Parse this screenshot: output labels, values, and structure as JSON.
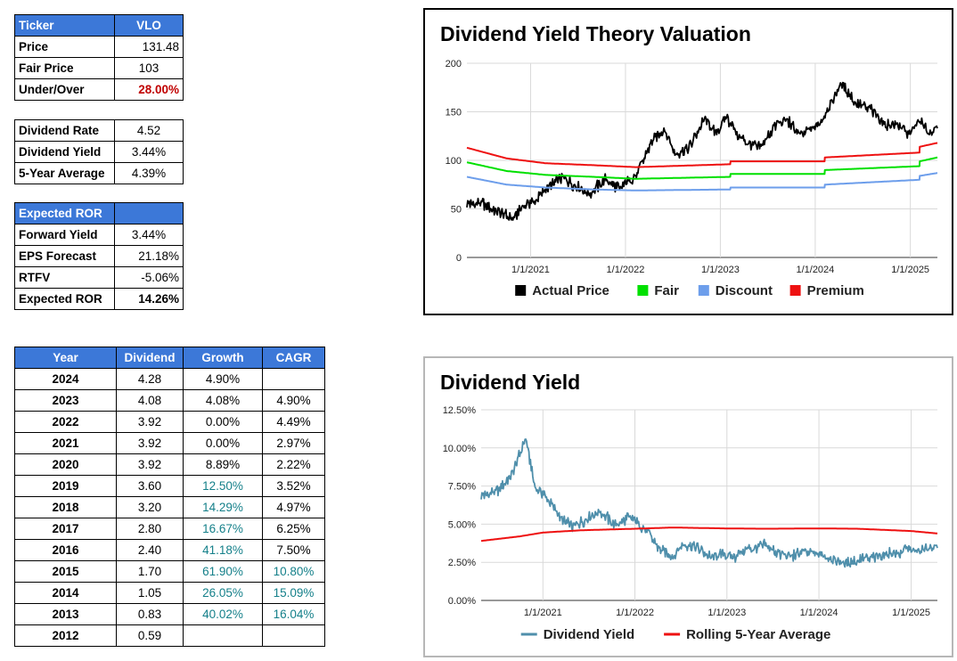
{
  "summary": {
    "ticker_label": "Ticker",
    "ticker": "VLO",
    "price_label": "Price",
    "price": "131.48",
    "fair_label": "Fair Price",
    "fair": "103",
    "uo_label": "Under/Over",
    "uo": "28.00%"
  },
  "dividend": {
    "rate_label": "Dividend Rate",
    "rate": "4.52",
    "yield_label": "Dividend Yield",
    "yield": "3.44%",
    "avg_label": "5-Year Average",
    "avg": "4.39%"
  },
  "ror": {
    "header": "Expected ROR",
    "fy_label": "Forward Yield",
    "fy": "3.44%",
    "eps_label": "EPS Forecast",
    "eps": "21.18%",
    "rtfv_label": "RTFV",
    "rtfv": "-5.06%",
    "exp_label": "Expected ROR",
    "exp": "14.26%"
  },
  "history": {
    "headers": [
      "Year",
      "Dividend",
      "Growth",
      "CAGR"
    ],
    "rows": [
      {
        "year": "2024",
        "dividend": "4.28",
        "growth": "4.90%",
        "cagr": "",
        "gtone": "black",
        "ctone": "black"
      },
      {
        "year": "2023",
        "dividend": "4.08",
        "growth": "4.08%",
        "cagr": "4.90%",
        "gtone": "black",
        "ctone": "black"
      },
      {
        "year": "2022",
        "dividend": "3.92",
        "growth": "0.00%",
        "cagr": "4.49%",
        "gtone": "black",
        "ctone": "black"
      },
      {
        "year": "2021",
        "dividend": "3.92",
        "growth": "0.00%",
        "cagr": "2.97%",
        "gtone": "black",
        "ctone": "black"
      },
      {
        "year": "2020",
        "dividend": "3.92",
        "growth": "8.89%",
        "cagr": "2.22%",
        "gtone": "black",
        "ctone": "black"
      },
      {
        "year": "2019",
        "dividend": "3.60",
        "growth": "12.50%",
        "cagr": "3.52%",
        "gtone": "teal",
        "ctone": "black"
      },
      {
        "year": "2018",
        "dividend": "3.20",
        "growth": "14.29%",
        "cagr": "4.97%",
        "gtone": "teal",
        "ctone": "black"
      },
      {
        "year": "2017",
        "dividend": "2.80",
        "growth": "16.67%",
        "cagr": "6.25%",
        "gtone": "teal",
        "ctone": "black"
      },
      {
        "year": "2016",
        "dividend": "2.40",
        "growth": "41.18%",
        "cagr": "7.50%",
        "gtone": "teal",
        "ctone": "black"
      },
      {
        "year": "2015",
        "dividend": "1.70",
        "growth": "61.90%",
        "cagr": "10.80%",
        "gtone": "teal",
        "ctone": "teal"
      },
      {
        "year": "2014",
        "dividend": "1.05",
        "growth": "26.05%",
        "cagr": "15.09%",
        "gtone": "teal",
        "ctone": "teal"
      },
      {
        "year": "2013",
        "dividend": "0.83",
        "growth": "40.02%",
        "cagr": "16.04%",
        "gtone": "teal",
        "ctone": "teal"
      },
      {
        "year": "2012",
        "dividend": "0.59",
        "growth": "",
        "cagr": "",
        "gtone": "black",
        "ctone": "black"
      }
    ]
  },
  "colors": {
    "header_bg": "#3c78d8",
    "alert_red": "#c00000",
    "growth_teal": "#15808a",
    "actual": "#000000",
    "fair": "#00e000",
    "discount": "#6d9eeb",
    "premium": "#ee1111",
    "yield_line": "#4f8fab",
    "rolling_line": "#ee1111"
  },
  "chart_data": [
    {
      "type": "line",
      "title": "Dividend Yield Theory Valuation",
      "x_ticks": [
        "1/1/2021",
        "1/1/2022",
        "1/1/2023",
        "1/1/2024",
        "1/1/2025"
      ],
      "y_ticks": [
        "0",
        "50",
        "100",
        "150",
        "200"
      ],
      "ylim": [
        0,
        200
      ],
      "xlim": [
        "2020-05-01",
        "2025-04-15"
      ],
      "grid": true,
      "legend_position": "bottom",
      "series": [
        {
          "name": "Actual Price",
          "color": "#000000",
          "points": [
            [
              "2020-05-01",
              56
            ],
            [
              "2020-07-01",
              55
            ],
            [
              "2020-09-01",
              47
            ],
            [
              "2020-10-25",
              39
            ],
            [
              "2020-12-01",
              53
            ],
            [
              "2021-01-15",
              58
            ],
            [
              "2021-03-15",
              73
            ],
            [
              "2021-05-01",
              82
            ],
            [
              "2021-06-01",
              77
            ],
            [
              "2021-08-15",
              66
            ],
            [
              "2021-10-15",
              80
            ],
            [
              "2021-12-10",
              71
            ],
            [
              "2022-02-15",
              86
            ],
            [
              "2022-04-10",
              118
            ],
            [
              "2022-06-01",
              133
            ],
            [
              "2022-07-10",
              107
            ],
            [
              "2022-09-01",
              112
            ],
            [
              "2022-11-01",
              143
            ],
            [
              "2022-12-15",
              128
            ],
            [
              "2023-01-25",
              145
            ],
            [
              "2023-03-15",
              123
            ],
            [
              "2023-06-01",
              112
            ],
            [
              "2023-08-01",
              136
            ],
            [
              "2023-09-15",
              142
            ],
            [
              "2023-11-01",
              126
            ],
            [
              "2024-01-15",
              137
            ],
            [
              "2024-03-20",
              167
            ],
            [
              "2024-04-10",
              179
            ],
            [
              "2024-06-10",
              158
            ],
            [
              "2024-08-01",
              153
            ],
            [
              "2024-10-01",
              136
            ],
            [
              "2024-11-15",
              138
            ],
            [
              "2024-12-20",
              126
            ],
            [
              "2025-02-05",
              141
            ],
            [
              "2025-03-15",
              128
            ],
            [
              "2025-04-15",
              133
            ]
          ]
        },
        {
          "name": "Fair",
          "color": "#00e000",
          "points": [
            [
              "2020-05-01",
              98
            ],
            [
              "2020-10-01",
              89
            ],
            [
              "2021-03-01",
              85
            ],
            [
              "2021-09-01",
              83
            ],
            [
              "2022-02-09",
              81
            ],
            [
              "2023-02-08",
              83
            ],
            [
              "2023-02-09",
              86
            ],
            [
              "2024-02-06",
              86
            ],
            [
              "2024-02-07",
              90
            ],
            [
              "2025-02-05",
              94
            ],
            [
              "2025-02-06",
              99
            ],
            [
              "2025-04-15",
              103
            ]
          ]
        },
        {
          "name": "Discount",
          "color": "#6d9eeb",
          "points": [
            [
              "2020-05-01",
              83
            ],
            [
              "2020-10-01",
              75
            ],
            [
              "2021-03-01",
              72
            ],
            [
              "2021-09-01",
              70
            ],
            [
              "2022-02-09",
              69
            ],
            [
              "2023-02-08",
              70
            ],
            [
              "2023-02-09",
              72
            ],
            [
              "2024-02-06",
              72
            ],
            [
              "2024-02-07",
              75
            ],
            [
              "2025-02-05",
              80
            ],
            [
              "2025-02-06",
              84
            ],
            [
              "2025-04-15",
              87
            ]
          ]
        },
        {
          "name": "Premium",
          "color": "#ee1111",
          "points": [
            [
              "2020-05-01",
              113
            ],
            [
              "2020-10-01",
              102
            ],
            [
              "2021-03-01",
              97
            ],
            [
              "2021-09-01",
              95
            ],
            [
              "2022-02-09",
              93
            ],
            [
              "2023-02-08",
              96
            ],
            [
              "2023-02-09",
              99
            ],
            [
              "2024-02-06",
              99
            ],
            [
              "2024-02-07",
              103
            ],
            [
              "2025-02-05",
              108
            ],
            [
              "2025-02-06",
              114
            ],
            [
              "2025-04-15",
              118
            ]
          ]
        }
      ]
    },
    {
      "type": "line",
      "title": "Dividend Yield",
      "x_ticks": [
        "1/1/2021",
        "1/1/2022",
        "1/1/2023",
        "1/1/2024",
        "1/1/2025"
      ],
      "y_ticks": [
        "0.00%",
        "2.50%",
        "5.00%",
        "7.50%",
        "10.00%",
        "12.50%"
      ],
      "ylim": [
        0,
        12.5
      ],
      "xlim": [
        "2020-05-01",
        "2025-04-15"
      ],
      "grid": true,
      "legend_position": "bottom",
      "series": [
        {
          "name": "Dividend Yield",
          "color": "#4f8fab",
          "points": [
            [
              "2020-05-01",
              6.9
            ],
            [
              "2020-07-01",
              7.1
            ],
            [
              "2020-09-01",
              8.3
            ],
            [
              "2020-10-25",
              10.6
            ],
            [
              "2020-12-01",
              7.4
            ],
            [
              "2021-01-15",
              6.8
            ],
            [
              "2021-03-15",
              5.3
            ],
            [
              "2021-05-01",
              4.8
            ],
            [
              "2021-06-01",
              5.1
            ],
            [
              "2021-08-15",
              5.9
            ],
            [
              "2021-10-15",
              4.9
            ],
            [
              "2021-12-10",
              5.5
            ],
            [
              "2022-02-15",
              4.6
            ],
            [
              "2022-04-10",
              3.3
            ],
            [
              "2022-06-01",
              2.9
            ],
            [
              "2022-07-10",
              3.7
            ],
            [
              "2022-09-01",
              3.5
            ],
            [
              "2022-11-01",
              2.8
            ],
            [
              "2022-12-15",
              3.1
            ],
            [
              "2023-01-25",
              2.8
            ],
            [
              "2023-03-15",
              3.3
            ],
            [
              "2023-06-01",
              3.6
            ],
            [
              "2023-08-01",
              3.0
            ],
            [
              "2023-09-15",
              2.9
            ],
            [
              "2023-11-01",
              3.2
            ],
            [
              "2024-01-15",
              3.0
            ],
            [
              "2024-03-20",
              2.5
            ],
            [
              "2024-04-10",
              2.4
            ],
            [
              "2024-06-10",
              2.7
            ],
            [
              "2024-08-01",
              2.8
            ],
            [
              "2024-10-01",
              3.1
            ],
            [
              "2024-11-15",
              3.1
            ],
            [
              "2024-12-20",
              3.4
            ],
            [
              "2025-02-05",
              3.2
            ],
            [
              "2025-03-15",
              3.5
            ],
            [
              "2025-04-15",
              3.44
            ]
          ]
        },
        {
          "name": "Rolling 5-Year Average",
          "color": "#ee1111",
          "points": [
            [
              "2020-05-01",
              3.9
            ],
            [
              "2020-10-01",
              4.2
            ],
            [
              "2021-01-01",
              4.45
            ],
            [
              "2021-06-01",
              4.6
            ],
            [
              "2022-01-01",
              4.7
            ],
            [
              "2022-06-01",
              4.78
            ],
            [
              "2023-01-01",
              4.72
            ],
            [
              "2023-06-01",
              4.7
            ],
            [
              "2024-01-01",
              4.72
            ],
            [
              "2024-06-01",
              4.7
            ],
            [
              "2025-01-01",
              4.55
            ],
            [
              "2025-04-15",
              4.39
            ]
          ]
        }
      ]
    }
  ]
}
